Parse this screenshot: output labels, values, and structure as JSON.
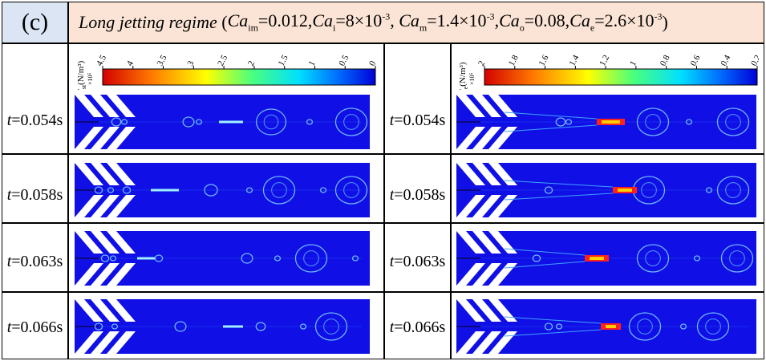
{
  "panel_label": "(c)",
  "title": {
    "regime": "Long jetting regime",
    "params": [
      {
        "sym": "Ca",
        "sub": "im",
        "val": "=0.012"
      },
      {
        "sym": "Ca",
        "sub": "i",
        "val": "=8×10",
        "sup": "-3"
      },
      {
        "sym": "Ca",
        "sub": "m",
        "val": "=1.4×10",
        "sup": "-3"
      },
      {
        "sym": "Ca",
        "sub": "o",
        "val": "=0.08"
      },
      {
        "sym": "Ca",
        "sub": "e",
        "val": "=2.6×10",
        "sup": "-3"
      }
    ]
  },
  "colorbars": {
    "left": {
      "quantity": "F",
      "sub": "st",
      "unit": "(N/m³)",
      "scale": "×10⁵",
      "ticks": [
        "4.5",
        "4",
        "3.5",
        "3",
        "2.5",
        "2",
        "1.5",
        "1",
        "0.5",
        "0"
      ]
    },
    "right": {
      "quantity": "F",
      "sub": "e",
      "unit": "(N/m³)",
      "scale": "×10⁵",
      "ticks": [
        "2",
        "1.8",
        "1.6",
        "1.4",
        "1.2",
        "1",
        "0.8",
        "0.6",
        "0.4",
        "0.2"
      ]
    }
  },
  "rows": [
    {
      "t_label": "t",
      "t_value": "=0.054s"
    },
    {
      "t_label": "t",
      "t_value": "=0.058s"
    },
    {
      "t_label": "t",
      "t_value": "=0.063s"
    },
    {
      "t_label": "t",
      "t_value": "=0.066s"
    }
  ],
  "colors": {
    "field_background": "#1010e6",
    "header_label_bg": "#dbe5f3",
    "header_title_bg": "#fbe4d5"
  }
}
